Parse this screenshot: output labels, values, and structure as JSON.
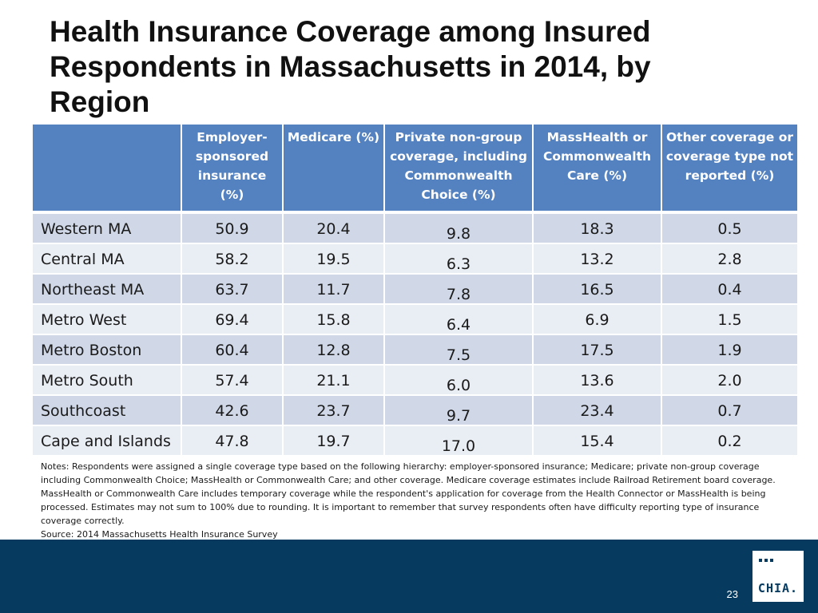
{
  "title": "Health Insurance Coverage among Insured Respondents in Massachusetts in 2014, by Region",
  "table": {
    "headers": [
      "",
      "Employer-sponsored insurance (%)",
      "Medicare (%)",
      "Private non-group coverage, including Commonwealth Choice (%)",
      "MassHealth or Commonwealth Care (%)",
      "Other coverage or coverage type not reported (%)"
    ],
    "rows": [
      [
        "Western MA",
        "50.9",
        "20.4",
        "9.8",
        "18.3",
        "0.5"
      ],
      [
        "Central MA",
        "58.2",
        "19.5",
        "6.3",
        "13.2",
        "2.8"
      ],
      [
        "Northeast MA",
        "63.7",
        "11.7",
        "7.8",
        "16.5",
        "0.4"
      ],
      [
        "Metro West",
        "69.4",
        "15.8",
        "6.4",
        "6.9",
        "1.5"
      ],
      [
        "Metro Boston",
        "60.4",
        "12.8",
        "7.5",
        "17.5",
        "1.9"
      ],
      [
        "Metro South",
        "57.4",
        "21.1",
        "6.0",
        "13.6",
        "2.0"
      ],
      [
        "Southcoast",
        "42.6",
        "23.7",
        "9.7",
        "23.4",
        "0.7"
      ],
      [
        "Cape and Islands",
        "47.8",
        "19.7",
        "17.0",
        "15.4",
        "0.2"
      ]
    ]
  },
  "notes": "Notes: Respondents were assigned a single coverage type based on the following hierarchy: employer-sponsored insurance; Medicare; private non-group coverage including Commonwealth Choice; MassHealth or Commonwealth Care; and other coverage. Medicare coverage estimates include Railroad Retirement board coverage. MassHealth or Commonwealth Care includes temporary coverage while the respondent's application for coverage from the Health Connector or MassHealth is being processed. Estimates may not sum to 100% due to rounding. It is important to remember that survey respondents often have difficulty reporting type of insurance coverage correctly.",
  "source": "Source:  2014 Massachusetts Health Insurance Survey",
  "footer": {
    "page_number": "23",
    "logo_text": "CHIA."
  },
  "colors": {
    "header_bg": "#5482c0",
    "row_odd": "#d0d8e8",
    "row_even": "#e9edf4",
    "footer_bg": "#063b5f"
  }
}
